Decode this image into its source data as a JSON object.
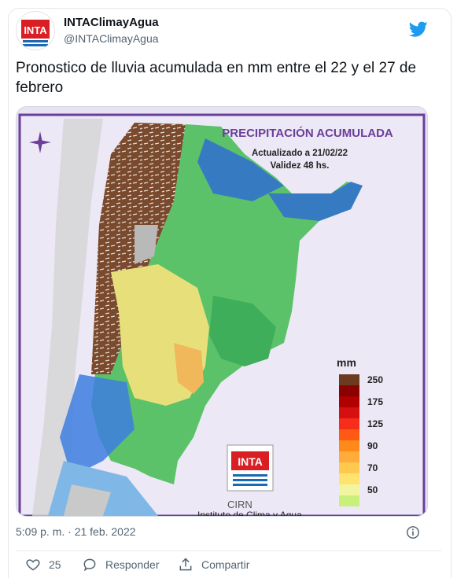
{
  "tweet": {
    "display_name": "INTAClimayAgua",
    "handle": "@INTAClimayAgua",
    "text": "Pronostico de lluvia acumulada en mm entre el 22 y el 27 de febrero",
    "timestamp": "5:09 p. m. · 21 feb. 2022",
    "avatar_text": "INTA"
  },
  "actions": {
    "like_count": "25",
    "reply_label": "Responder",
    "share_label": "Compartir"
  },
  "map": {
    "title": "PRECIPITACIÓN ACUMULADA",
    "updated": "Actualizado a 21/02/22",
    "validity": "Validez 48 hs.",
    "legend_unit": "mm",
    "legend": [
      {
        "label": "250",
        "color": "#6b3a1f"
      },
      {
        "label": "",
        "color": "#8b0000"
      },
      {
        "label": "175",
        "color": "#b00000"
      },
      {
        "label": "",
        "color": "#d61010"
      },
      {
        "label": "125",
        "color": "#f52d1a"
      },
      {
        "label": "",
        "color": "#ff5a14"
      },
      {
        "label": "90",
        "color": "#ff8a1a"
      },
      {
        "label": "",
        "color": "#ffac3a"
      },
      {
        "label": "70",
        "color": "#ffc94f"
      },
      {
        "label": "",
        "color": "#ffe36e"
      },
      {
        "label": "50",
        "color": "#f2f5a0"
      },
      {
        "label": "",
        "color": "#c8f07a"
      }
    ],
    "logo_text": "INTA",
    "cirn_text": "CIRN",
    "institute_text": "Instituto de Clima y Agua"
  },
  "colors": {
    "accent": "#1d9bf0",
    "map_frame": "#6a3e9a"
  }
}
